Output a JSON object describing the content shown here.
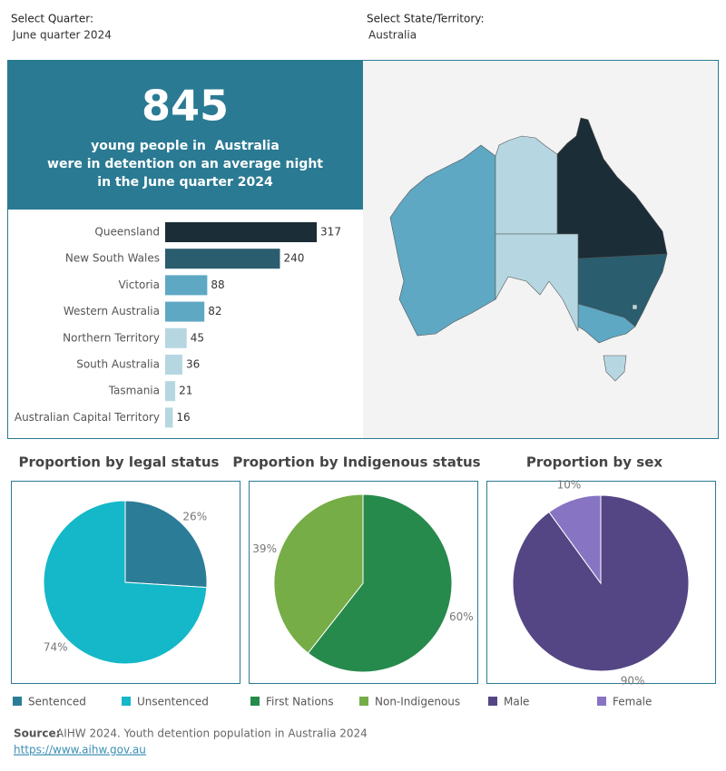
{
  "filters": [
    {
      "label": "Select Quarter:",
      "value": "June quarter 2024"
    },
    {
      "label": "Select State/Territory:",
      "value": "Australia"
    }
  ],
  "headline": {
    "number": 845,
    "lines": [
      "young people in  Australia",
      "were in detention on an average night",
      "in the June quarter 2024"
    ]
  },
  "chart_data": [
    {
      "type": "bar",
      "orientation": "horizontal",
      "categories": [
        "Queensland",
        "New South Wales",
        "Victoria",
        "Western Australia",
        "Northern Territory",
        "South Australia",
        "Tasmania",
        "Australian Capital Territory"
      ],
      "values": [
        317,
        240,
        88,
        82,
        45,
        36,
        21,
        16
      ],
      "colors": [
        "#1b2d36",
        "#2a5d6e",
        "#5ea8c4",
        "#5ea8c4",
        "#b6d7e1",
        "#b6d7e1",
        "#b6d7e1",
        "#b6d7e1"
      ]
    },
    {
      "type": "pie",
      "title": "Proportion by legal status",
      "categories": [
        "Sentenced",
        "Unsentenced"
      ],
      "values": [
        26,
        74
      ],
      "value_labels": [
        "26%",
        "74%"
      ],
      "colors": [
        "#2b7c97",
        "#14b8c8"
      ]
    },
    {
      "type": "pie",
      "title": "Proportion by Indigenous status",
      "categories": [
        "First Nations",
        "Non-Indigenous"
      ],
      "values": [
        60,
        39
      ],
      "value_labels": [
        "60%",
        "39%"
      ],
      "colors": [
        "#268a4c",
        "#76ad47"
      ]
    },
    {
      "type": "pie",
      "title": "Proportion by sex",
      "categories": [
        "Male",
        "Female"
      ],
      "values": [
        90,
        10
      ],
      "value_labels": [
        "90%",
        "10%"
      ],
      "colors": [
        "#544684",
        "#8774c2"
      ]
    }
  ],
  "source": {
    "label": "Source:",
    "text": "AIHW 2024. Youth detention population in Australia 2024",
    "link": "https://www.aihw.gov.au"
  }
}
